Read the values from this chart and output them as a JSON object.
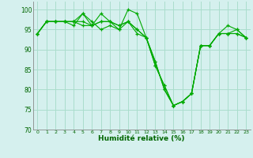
{
  "title": "",
  "xlabel": "Humidité relative (%)",
  "ylabel": "",
  "bg_color": "#d5f0ee",
  "grid_color": "#aaddcc",
  "line_color": "#00aa00",
  "marker_color": "#00aa00",
  "ylim": [
    70,
    102
  ],
  "xlim": [
    -0.5,
    23.5
  ],
  "yticks": [
    70,
    75,
    80,
    85,
    90,
    95,
    100
  ],
  "xticks": [
    0,
    1,
    2,
    3,
    4,
    5,
    6,
    7,
    8,
    9,
    10,
    11,
    12,
    13,
    14,
    15,
    16,
    17,
    18,
    19,
    20,
    21,
    22,
    23
  ],
  "series": [
    [
      94,
      97,
      97,
      97,
      96,
      99,
      96,
      99,
      97,
      95,
      100,
      99,
      93,
      87,
      80,
      76,
      77,
      79,
      91,
      91,
      94,
      96,
      95,
      93
    ],
    [
      94,
      97,
      97,
      97,
      97,
      99,
      97,
      95,
      96,
      95,
      97,
      94,
      93,
      87,
      80,
      76,
      77,
      79,
      91,
      91,
      94,
      94,
      95,
      93
    ],
    [
      94,
      97,
      97,
      97,
      97,
      96,
      96,
      97,
      97,
      96,
      97,
      95,
      93,
      86,
      81,
      76,
      77,
      79,
      91,
      91,
      94,
      94,
      94,
      93
    ],
    [
      94,
      97,
      97,
      97,
      97,
      97,
      96,
      97,
      97,
      96,
      97,
      95,
      93,
      86,
      81,
      76,
      77,
      79,
      91,
      91,
      94,
      94,
      94,
      93
    ]
  ]
}
